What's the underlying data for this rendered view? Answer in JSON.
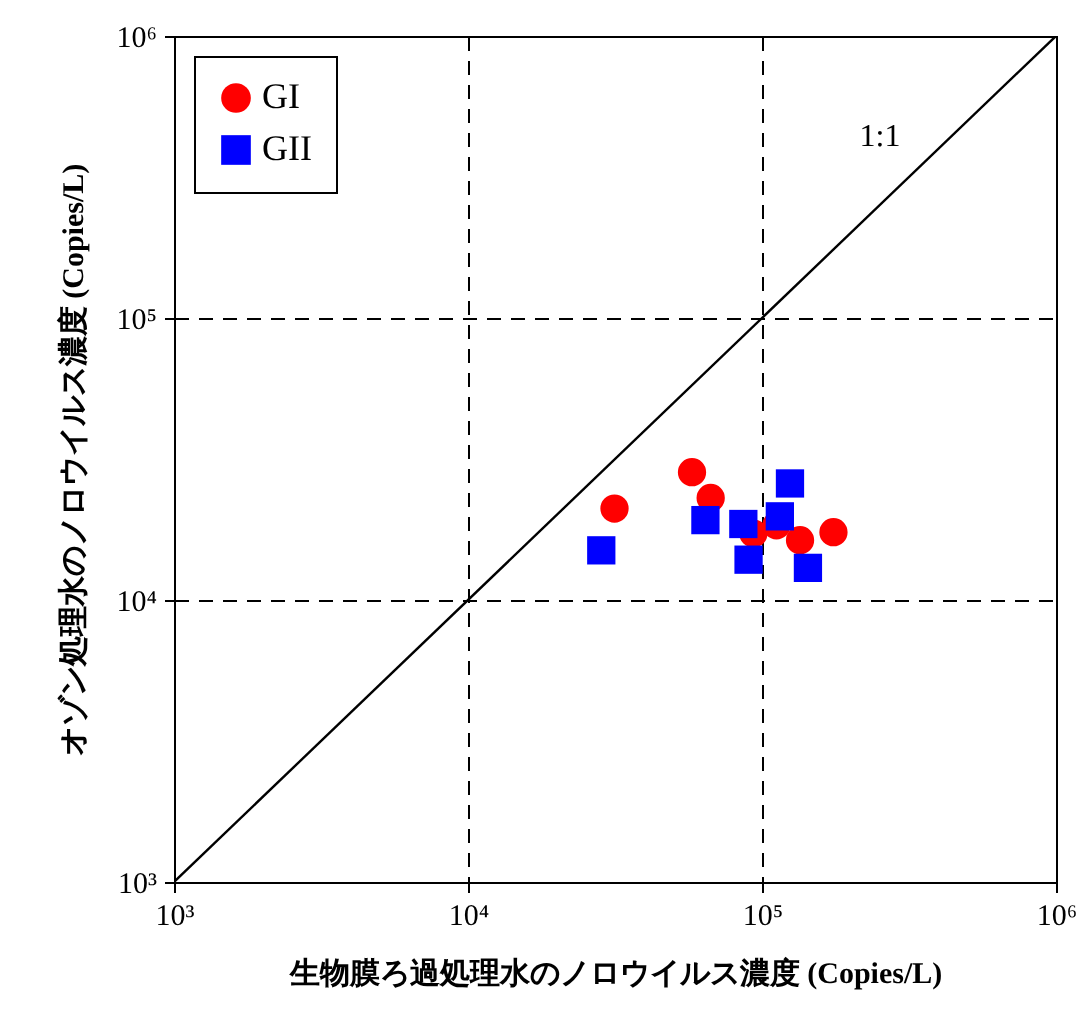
{
  "chart_data": {
    "type": "scatter",
    "xlabel": "生物膜ろ過処理水のノロウイルス濃度 (Copies/L)",
    "ylabel": "オゾン処理水のノロウイルス濃度 (Copies/L)",
    "log": "xy",
    "grid": true,
    "legend": "top left",
    "xlim": [
      1000,
      1000000
    ],
    "ylim": [
      1000,
      1000000
    ],
    "xticks": [
      {
        "value": 1000,
        "label": "10³"
      },
      {
        "value": 10000,
        "label": "10⁴"
      },
      {
        "value": 100000,
        "label": "10⁵"
      },
      {
        "value": 1000000,
        "label": "10⁶"
      }
    ],
    "yticks": [
      {
        "value": 1000,
        "label": "10³"
      },
      {
        "value": 10000,
        "label": "10⁴"
      },
      {
        "value": 100000,
        "label": "10⁵"
      },
      {
        "value": 1000000,
        "label": "10⁶"
      }
    ],
    "series": [
      {
        "name": "GI",
        "color": "#ff0000",
        "marker": "circle",
        "x": [
          31500,
          57800,
          66900,
          93500,
          112000,
          134700,
          175000
        ],
        "values": [
          21100,
          28400,
          23000,
          17200,
          18400,
          16300,
          17400
        ]
      },
      {
        "name": "GII",
        "color": "#0000ff",
        "marker": "square",
        "x": [
          28400,
          64200,
          86400,
          90000,
          115000,
          124500,
          143300
        ],
        "values": [
          15000,
          19200,
          18600,
          13900,
          19800,
          25900,
          13000
        ]
      },
      {
        "type": "line",
        "color": "#000000",
        "marker": "none",
        "line_style": "solid",
        "x": [
          1000,
          1000000
        ],
        "values": [
          1000,
          1000000
        ]
      }
    ],
    "annotations": [
      "1:1"
    ]
  }
}
